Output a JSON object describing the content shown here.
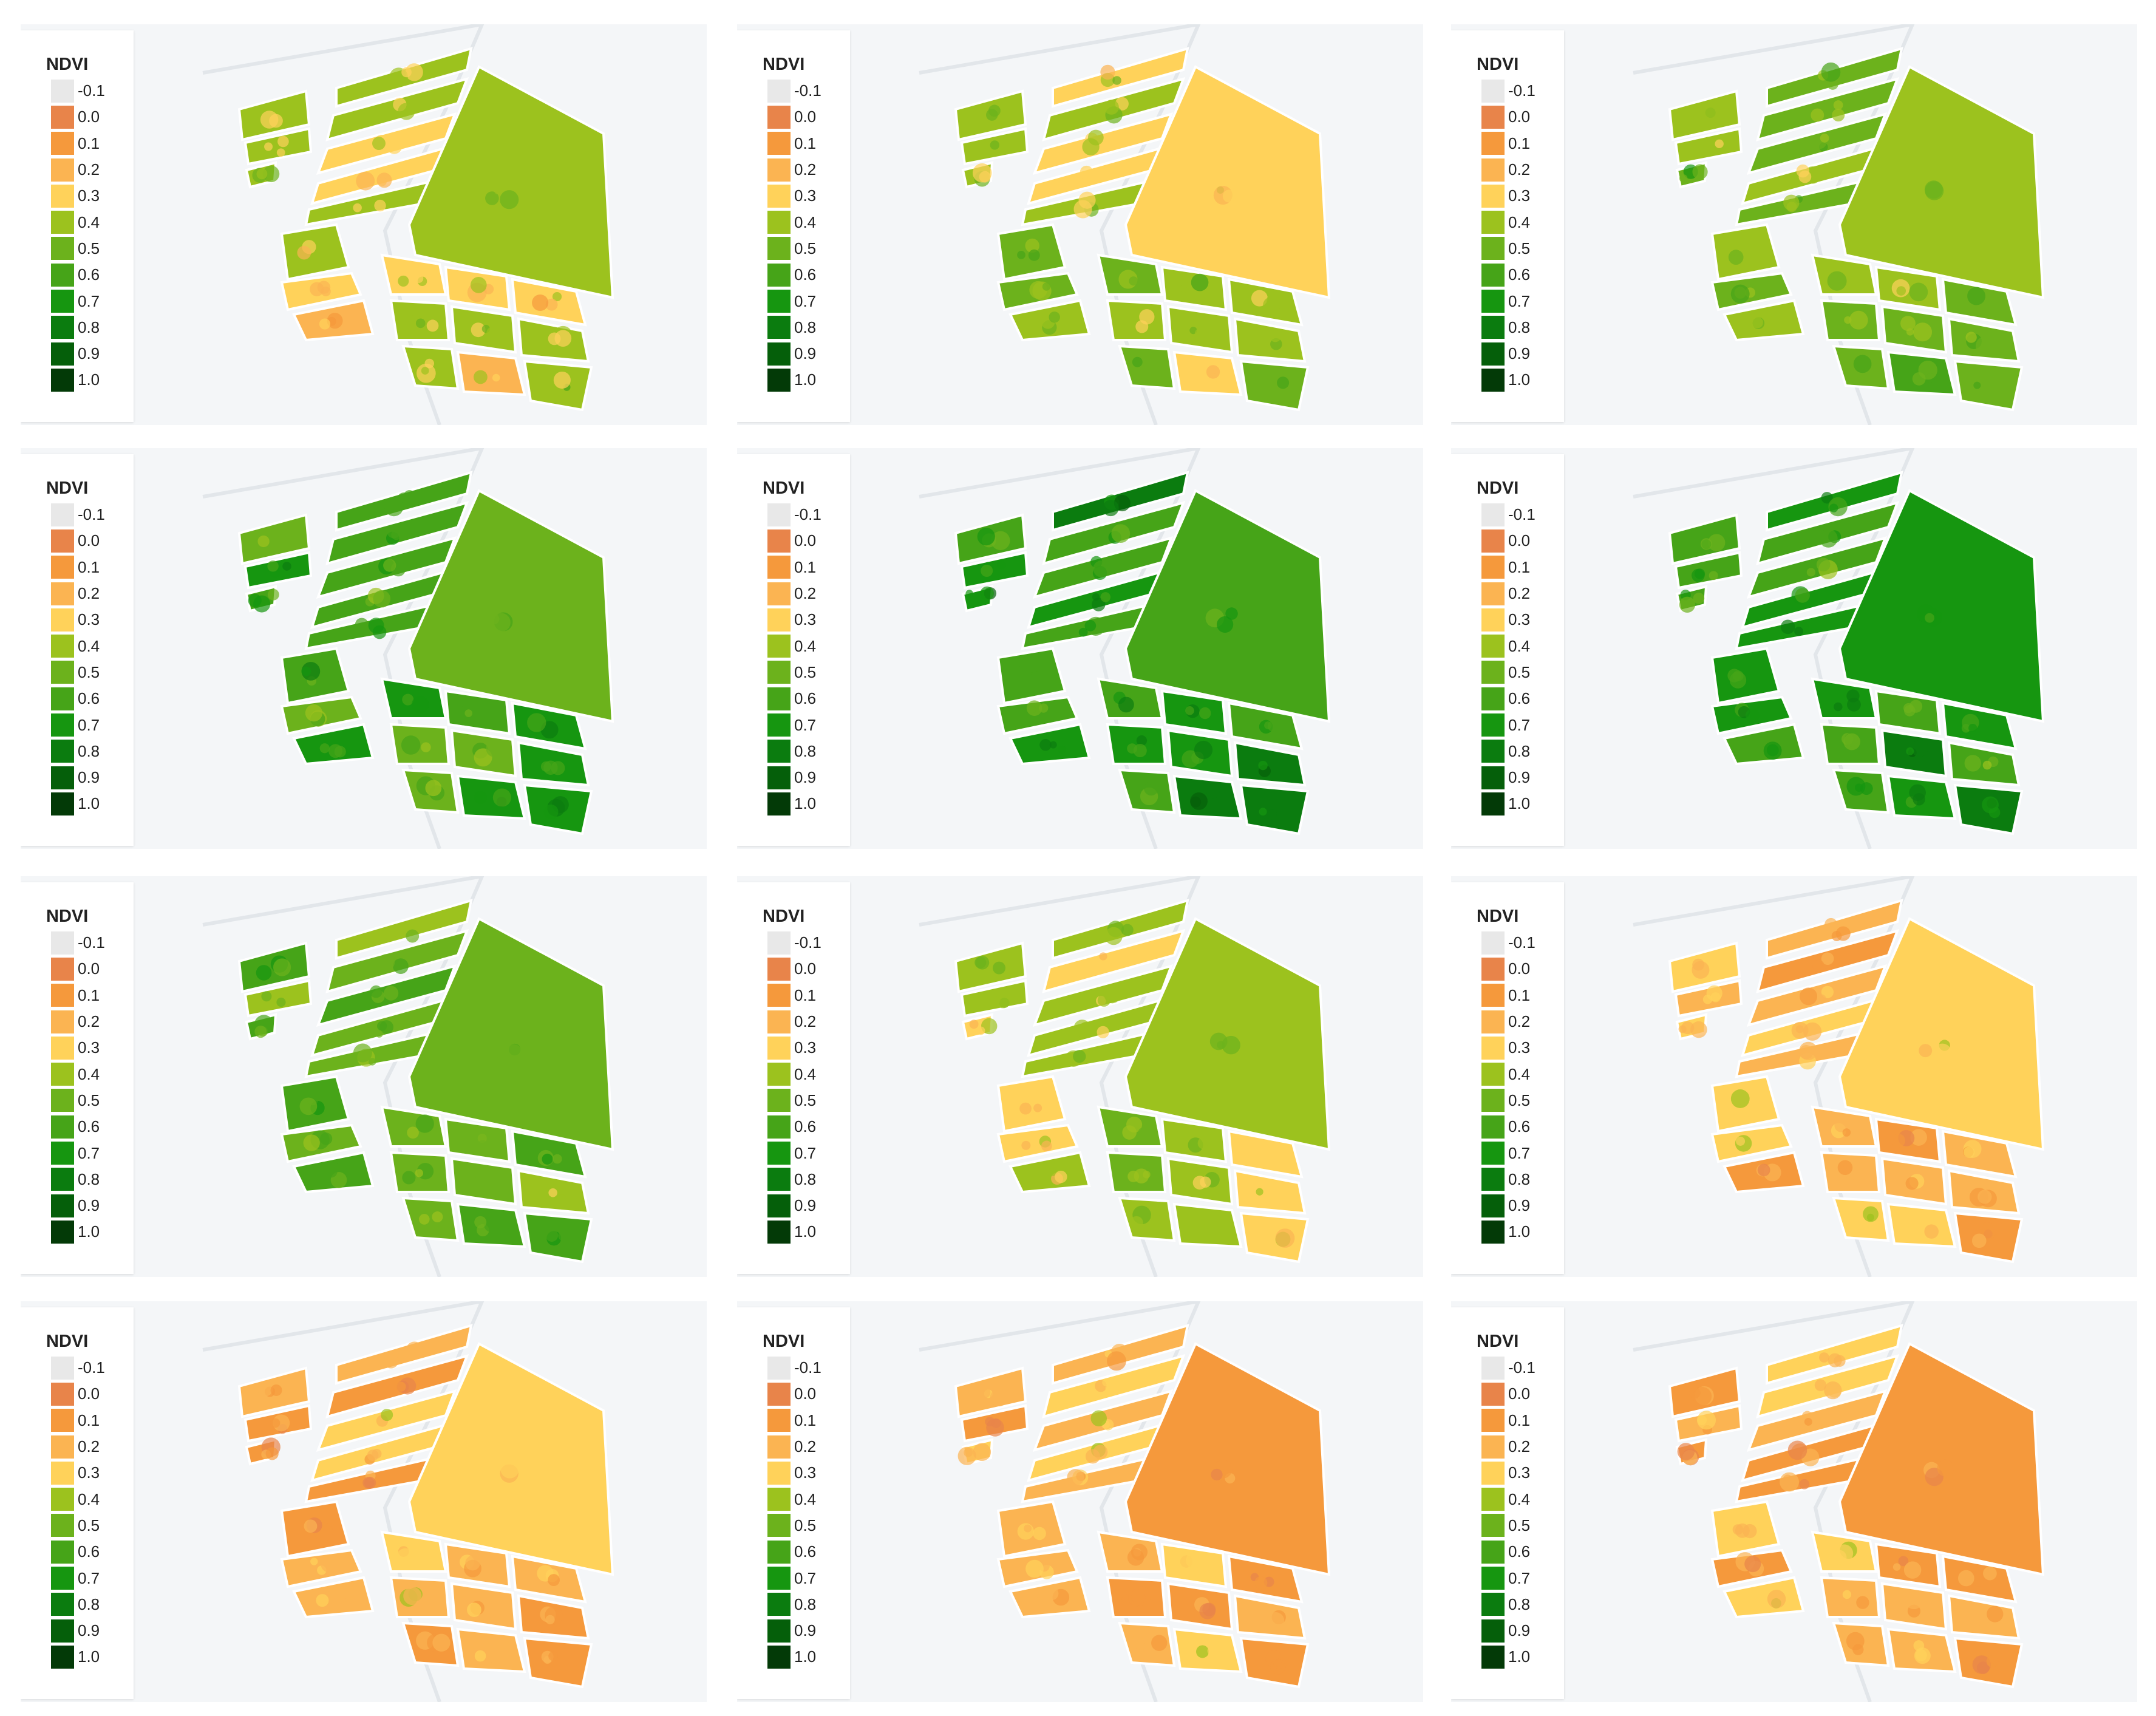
{
  "legend": {
    "title": "NDVI",
    "entries": [
      {
        "label": "-0.1",
        "color": "#e8e8e8"
      },
      {
        "label": "0.0",
        "color": "#e8844a"
      },
      {
        "label": "0.1",
        "color": "#f5993c"
      },
      {
        "label": "0.2",
        "color": "#fbb452"
      },
      {
        "label": "0.3",
        "color": "#ffd25a"
      },
      {
        "label": "0.4",
        "color": "#9cc21e"
      },
      {
        "label": "0.5",
        "color": "#6cb21c"
      },
      {
        "label": "0.6",
        "color": "#46a418"
      },
      {
        "label": "0.7",
        "color": "#169610"
      },
      {
        "label": "0.8",
        "color": "#0b7c0f"
      },
      {
        "label": "0.9",
        "color": "#055f0a"
      },
      {
        "label": "1.0",
        "color": "#033a07"
      }
    ]
  },
  "panels": [
    {
      "name": "panel-1",
      "ndvi_mean": 0.34
    },
    {
      "name": "panel-2",
      "ndvi_mean": 0.4
    },
    {
      "name": "panel-3",
      "ndvi_mean": 0.45
    },
    {
      "name": "panel-4",
      "ndvi_mean": 0.58
    },
    {
      "name": "panel-5",
      "ndvi_mean": 0.66
    },
    {
      "name": "panel-6",
      "ndvi_mean": 0.66
    },
    {
      "name": "panel-7",
      "ndvi_mean": 0.52
    },
    {
      "name": "panel-8",
      "ndvi_mean": 0.37
    },
    {
      "name": "panel-9",
      "ndvi_mean": 0.22
    },
    {
      "name": "panel-10",
      "ndvi_mean": 0.18
    },
    {
      "name": "panel-11",
      "ndvi_mean": 0.2
    },
    {
      "name": "panel-12",
      "ndvi_mean": 0.17
    }
  ]
}
